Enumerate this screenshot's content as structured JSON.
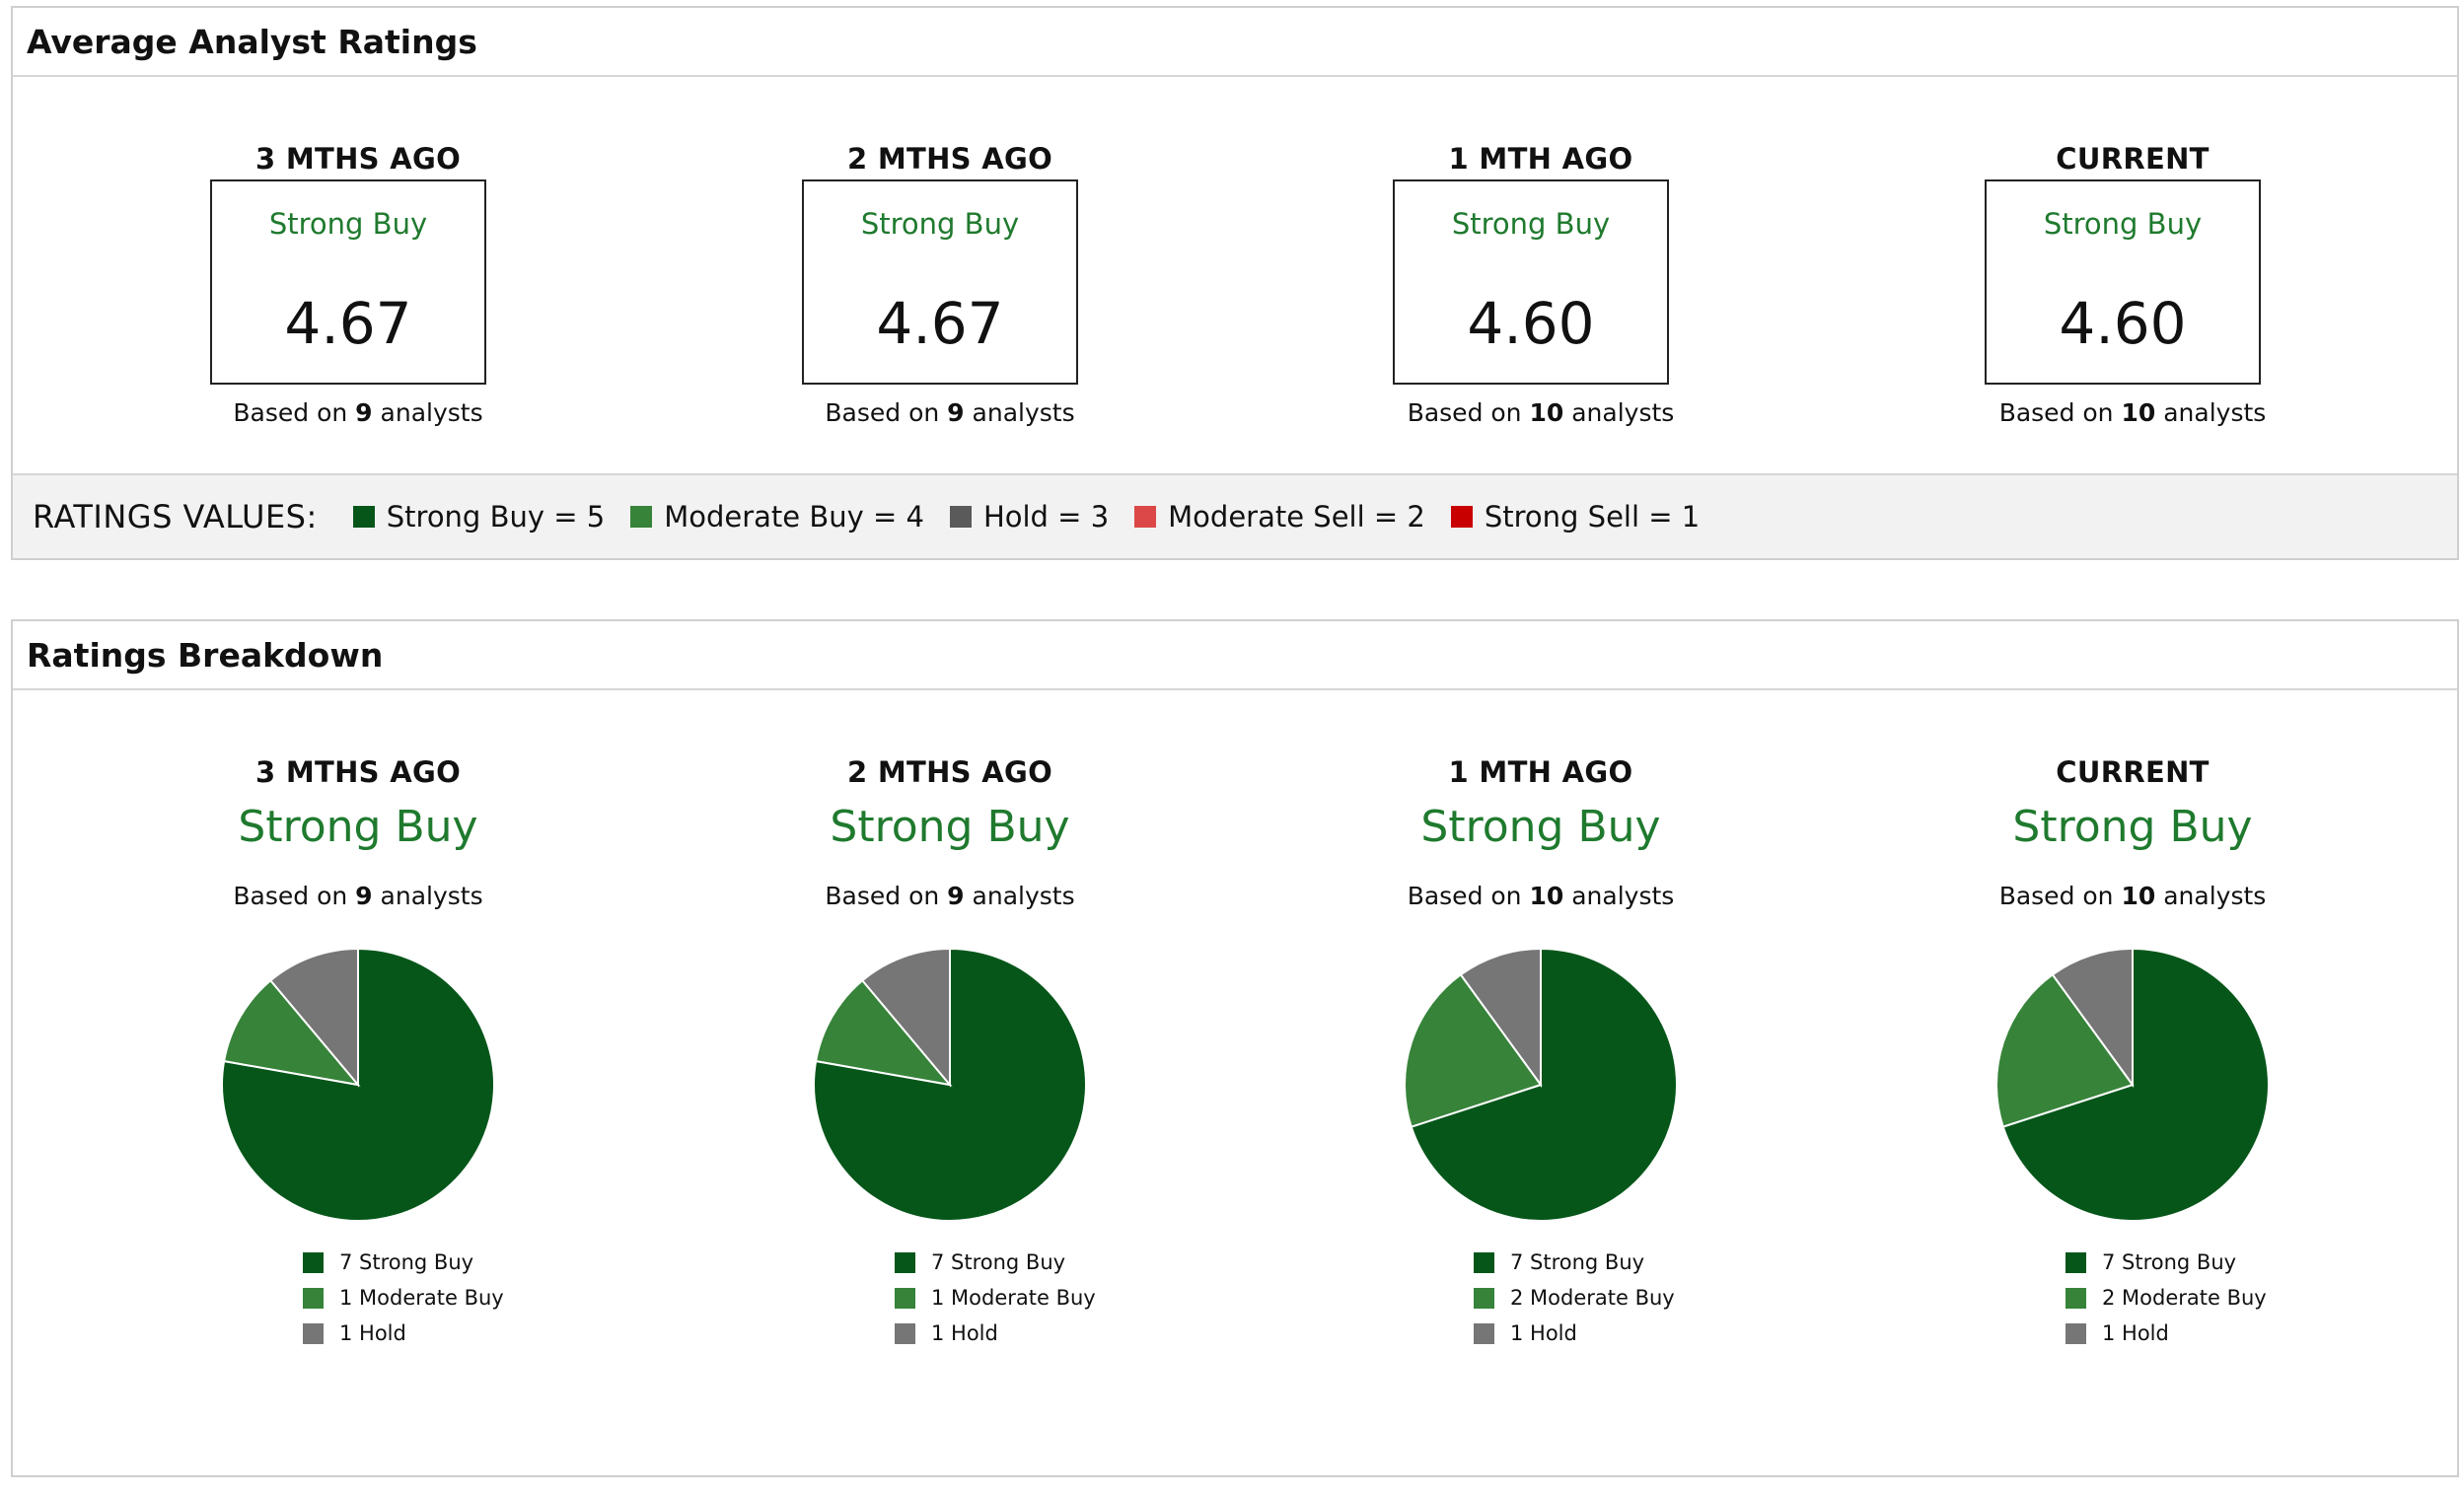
{
  "avg_panel": {
    "title": "Average Analyst Ratings",
    "columns": [
      {
        "label": "3 MTHS AGO",
        "rating": "Strong Buy",
        "value": "4.67",
        "based_on_prefix": "Based on",
        "analysts": "9",
        "based_on_suffix": "analysts"
      },
      {
        "label": "2 MTHS AGO",
        "rating": "Strong Buy",
        "value": "4.67",
        "based_on_prefix": "Based on",
        "analysts": "9",
        "based_on_suffix": "analysts"
      },
      {
        "label": "1 MTH AGO",
        "rating": "Strong Buy",
        "value": "4.60",
        "based_on_prefix": "Based on",
        "analysts": "10",
        "based_on_suffix": "analysts"
      },
      {
        "label": "CURRENT",
        "rating": "Strong Buy",
        "value": "4.60",
        "based_on_prefix": "Based on",
        "analysts": "10",
        "based_on_suffix": "analysts"
      }
    ],
    "legend": {
      "title": "RATINGS VALUES:",
      "items": [
        {
          "label": "Strong Buy = 5",
          "color": "#06561a"
        },
        {
          "label": "Moderate Buy = 4",
          "color": "#368339"
        },
        {
          "label": "Hold = 3",
          "color": "#5a5a5a"
        },
        {
          "label": "Moderate Sell = 2",
          "color": "#dc4848"
        },
        {
          "label": "Strong Sell = 1",
          "color": "#c80000"
        }
      ]
    }
  },
  "breakdown_panel": {
    "title": "Ratings Breakdown"
  },
  "colors": {
    "strong_buy": "#06561a",
    "moderate_buy": "#368339",
    "hold": "#767676",
    "rating_text": "#1f7a2e"
  },
  "chart_data": [
    {
      "type": "pie",
      "title": "3 MTHS AGO",
      "subtitle": "Strong Buy",
      "based_on_prefix": "Based on",
      "analysts": "9",
      "based_on_suffix": "analysts",
      "categories": [
        "Strong Buy",
        "Moderate Buy",
        "Hold"
      ],
      "values": [
        7,
        1,
        1
      ],
      "legend_labels": [
        "7 Strong Buy",
        "1 Moderate Buy",
        "1 Hold"
      ],
      "colors": [
        "#06561a",
        "#368339",
        "#767676"
      ],
      "legend": "bottom"
    },
    {
      "type": "pie",
      "title": "2 MTHS AGO",
      "subtitle": "Strong Buy",
      "based_on_prefix": "Based on",
      "analysts": "9",
      "based_on_suffix": "analysts",
      "categories": [
        "Strong Buy",
        "Moderate Buy",
        "Hold"
      ],
      "values": [
        7,
        1,
        1
      ],
      "legend_labels": [
        "7 Strong Buy",
        "1 Moderate Buy",
        "1 Hold"
      ],
      "colors": [
        "#06561a",
        "#368339",
        "#767676"
      ],
      "legend": "bottom"
    },
    {
      "type": "pie",
      "title": "1 MTH AGO",
      "subtitle": "Strong Buy",
      "based_on_prefix": "Based on",
      "analysts": "10",
      "based_on_suffix": "analysts",
      "categories": [
        "Strong Buy",
        "Moderate Buy",
        "Hold"
      ],
      "values": [
        7,
        2,
        1
      ],
      "legend_labels": [
        "7 Strong Buy",
        "2 Moderate Buy",
        "1 Hold"
      ],
      "colors": [
        "#06561a",
        "#368339",
        "#767676"
      ],
      "legend": "bottom"
    },
    {
      "type": "pie",
      "title": "CURRENT",
      "subtitle": "Strong Buy",
      "based_on_prefix": "Based on",
      "analysts": "10",
      "based_on_suffix": "analysts",
      "categories": [
        "Strong Buy",
        "Moderate Buy",
        "Hold"
      ],
      "values": [
        7,
        2,
        1
      ],
      "legend_labels": [
        "7 Strong Buy",
        "2 Moderate Buy",
        "1 Hold"
      ],
      "colors": [
        "#06561a",
        "#368339",
        "#767676"
      ],
      "legend": "bottom"
    }
  ]
}
